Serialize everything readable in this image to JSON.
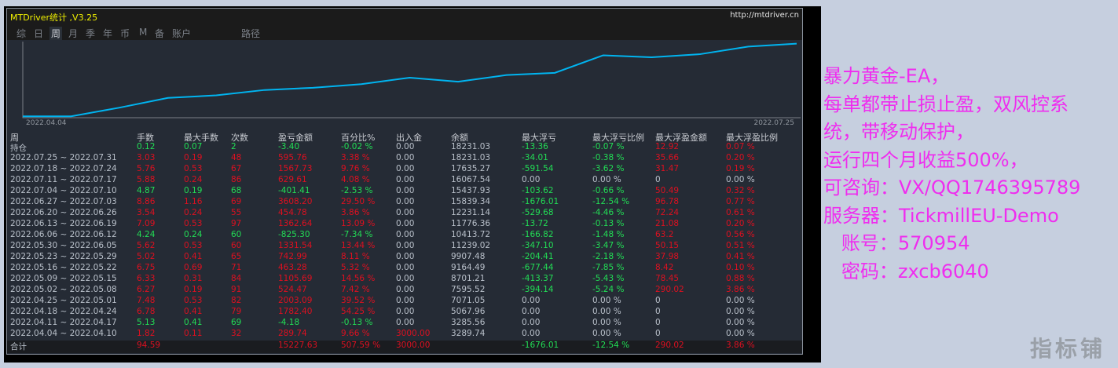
{
  "window": {
    "title": "MTDriver统计 ,V3.25",
    "url": "http://mtdriver.cn"
  },
  "tabs": [
    {
      "label": "综"
    },
    {
      "label": "日"
    },
    {
      "label": "周",
      "active": true
    },
    {
      "label": "月"
    },
    {
      "label": "季"
    },
    {
      "label": "年"
    },
    {
      "label": "币"
    },
    {
      "label": "M"
    },
    {
      "label": "备"
    },
    {
      "label": "账户"
    },
    {
      "label": "路径"
    }
  ],
  "chart": {
    "start_label": "2022.04.04",
    "end_label": "2022.07.25",
    "line_color": "#00b4f0"
  },
  "columns": [
    "周",
    "手数",
    "最大手数",
    "次数",
    "盈亏金额",
    "百分比%",
    "出入金",
    "余额",
    "最大浮亏",
    "最大浮亏比例",
    "最大浮盈金额",
    "最大浮盈比例"
  ],
  "rows": [
    [
      "持仓",
      "0.12",
      "0.07",
      "2",
      "-3.40",
      "-0.02 %",
      "0.00",
      "18231.03",
      "-13.36",
      "-0.07 %",
      "12.92",
      "0.07 %"
    ],
    [
      "2022.07.25 ~ 2022.07.31",
      "3.03",
      "0.19",
      "48",
      "595.76",
      "3.38 %",
      "0.00",
      "18231.03",
      "-34.01",
      "-0.38 %",
      "35.66",
      "0.20 %"
    ],
    [
      "2022.07.18 ~ 2022.07.24",
      "5.76",
      "0.53",
      "67",
      "1567.73",
      "9.76 %",
      "0.00",
      "17635.27",
      "-591.54",
      "-3.62 %",
      "31.47",
      "0.19 %"
    ],
    [
      "2022.07.11 ~ 2022.07.17",
      "5.88",
      "0.24",
      "86",
      "629.61",
      "4.08 %",
      "0.00",
      "16067.54",
      "0.00",
      "0.00 %",
      "0",
      "0.00 %"
    ],
    [
      "2022.07.04 ~ 2022.07.10",
      "4.87",
      "0.19",
      "68",
      "-401.41",
      "-2.53 %",
      "0.00",
      "15437.93",
      "-103.62",
      "-0.66 %",
      "50.49",
      "0.32 %"
    ],
    [
      "2022.06.27 ~ 2022.07.03",
      "8.86",
      "1.16",
      "69",
      "3608.20",
      "29.50 %",
      "0.00",
      "15839.34",
      "-1676.01",
      "-12.54 %",
      "96.78",
      "0.77 %"
    ],
    [
      "2022.06.20 ~ 2022.06.26",
      "3.54",
      "0.24",
      "55",
      "454.78",
      "3.86 %",
      "0.00",
      "12231.14",
      "-529.68",
      "-4.46 %",
      "72.24",
      "0.61 %"
    ],
    [
      "2022.06.13 ~ 2022.06.19",
      "7.09",
      "0.53",
      "97",
      "1362.64",
      "13.09 %",
      "0.00",
      "11776.36",
      "-13.72",
      "-0.13 %",
      "21.08",
      "0.20 %"
    ],
    [
      "2022.06.06 ~ 2022.06.12",
      "4.24",
      "0.24",
      "60",
      "-825.30",
      "-7.34 %",
      "0.00",
      "10413.72",
      "-166.82",
      "-1.48 %",
      "63.2",
      "0.56 %"
    ],
    [
      "2022.05.30 ~ 2022.06.05",
      "5.62",
      "0.53",
      "60",
      "1331.54",
      "13.44 %",
      "0.00",
      "11239.02",
      "-347.10",
      "-3.47 %",
      "50.15",
      "0.51 %"
    ],
    [
      "2022.05.23 ~ 2022.05.29",
      "5.02",
      "0.41",
      "65",
      "742.99",
      "8.11 %",
      "0.00",
      "9907.48",
      "-204.41",
      "-2.18 %",
      "37.98",
      "0.41 %"
    ],
    [
      "2022.05.16 ~ 2022.05.22",
      "6.75",
      "0.69",
      "71",
      "463.28",
      "5.32 %",
      "0.00",
      "9164.49",
      "-677.44",
      "-7.85 %",
      "8.42",
      "0.10 %"
    ],
    [
      "2022.05.09 ~ 2022.05.15",
      "6.33",
      "0.31",
      "84",
      "1105.69",
      "14.56 %",
      "0.00",
      "8701.21",
      "-413.37",
      "-5.43 %",
      "78.45",
      "0.88 %"
    ],
    [
      "2022.05.02 ~ 2022.05.08",
      "6.27",
      "0.19",
      "91",
      "524.47",
      "7.42 %",
      "0.00",
      "7595.52",
      "-394.14",
      "-5.24 %",
      "290.02",
      "3.86 %"
    ],
    [
      "2022.04.25 ~ 2022.05.01",
      "7.48",
      "0.53",
      "82",
      "2003.09",
      "39.52 %",
      "0.00",
      "7071.05",
      "0.00",
      "0.00 %",
      "0",
      "0.00 %"
    ],
    [
      "2022.04.18 ~ 2022.04.24",
      "6.78",
      "0.41",
      "79",
      "1782.40",
      "54.25 %",
      "0.00",
      "5067.96",
      "0.00",
      "0.00 %",
      "0",
      "0.00 %"
    ],
    [
      "2022.04.11 ~ 2022.04.17",
      "5.13",
      "0.41",
      "69",
      "-4.18",
      "-0.13 %",
      "0.00",
      "3285.56",
      "0.00",
      "0.00 %",
      "0",
      "0.00 %"
    ],
    [
      "2022.04.04 ~ 2022.04.10",
      "1.82",
      "0.11",
      "32",
      "289.74",
      "9.66 %",
      "3000.00",
      "3289.74",
      "0.00",
      "0.00 %",
      "0",
      "0.00 %"
    ]
  ],
  "total": [
    "合计",
    "94.59",
    "",
    "",
    "15227.63",
    "507.59 %",
    "3000.00",
    "",
    "-1676.01",
    "-12.54 %",
    "290.02",
    "3.86 %"
  ],
  "colors": {
    "profit": "#dd1020",
    "loss": "#22dd55",
    "neutral": "#b9c0ca",
    "annotation": "#ef2def"
  },
  "annotation": [
    "暴力黄金-EA，",
    "每单都带止损止盈，双风控系",
    "统，带移动保护，",
    "运行四个月收益500%，",
    "可咨询：VX/QQ1746395789",
    "服务器：TickmillEU-Demo",
    "   账号：570954",
    "   密码：zxcb6040"
  ],
  "watermark": "指标铺"
}
